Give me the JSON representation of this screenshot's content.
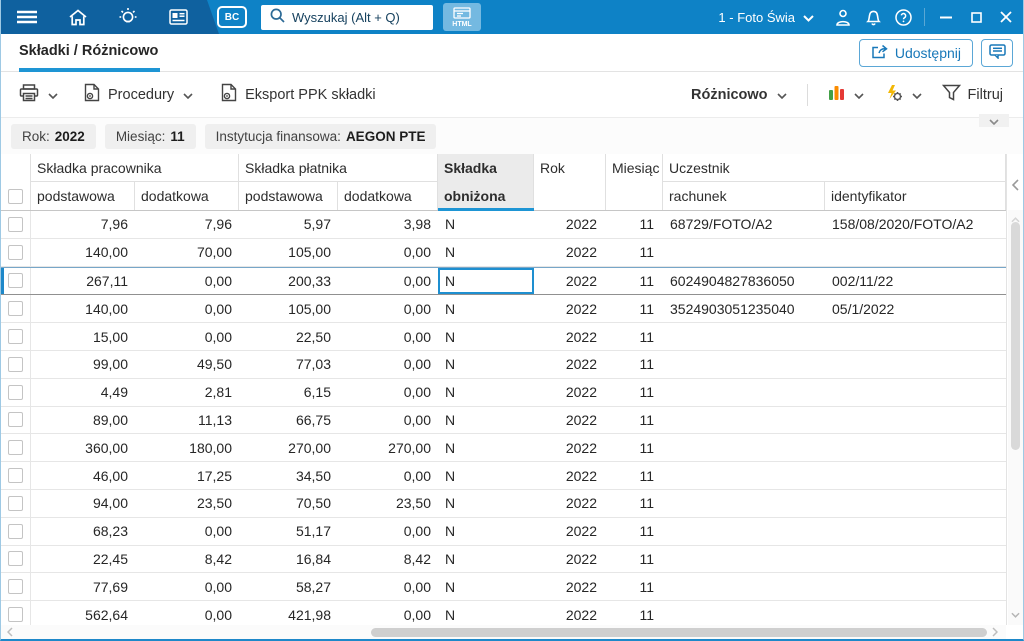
{
  "topbar": {
    "bc_badge": "BC",
    "search_placeholder": "Wyszukaj (Alt + Q)",
    "html_label": "HTML",
    "company": "1 - Foto Świa"
  },
  "tabbar": {
    "tab_label": "Składki / Różnicowo",
    "share_label": "Udostępnij"
  },
  "toolbar": {
    "procedures_label": "Procedury",
    "export_label": "Eksport PPK składki",
    "view_label": "Różnicowo",
    "filter_label": "Filtruj"
  },
  "filters": [
    {
      "label": "Rok:",
      "value": "2022"
    },
    {
      "label": "Miesiąc:",
      "value": "11"
    },
    {
      "label": "Instytucja finansowa:",
      "value": "AEGON PTE"
    }
  ],
  "table": {
    "headers": {
      "employee_group": "Składka pracownika",
      "payer_group": "Składka płatnika",
      "reduced_line1": "Składka",
      "reduced_line2": "obniżona",
      "year": "Rok",
      "month": "Miesiąc",
      "participant_group": "Uczestnik",
      "sub_basic": "podstawowa",
      "sub_additional": "dodatkowa",
      "account": "rachunek",
      "identifier": "identyfikator"
    },
    "rows": [
      {
        "emp_basic": "7,96",
        "emp_add": "7,96",
        "pay_basic": "5,97",
        "pay_add": "3,98",
        "reduced": "N",
        "year": "2022",
        "month": "11",
        "account": "68729/FOTO/A2",
        "identifier": "158/08/2020/FOTO/A2"
      },
      {
        "emp_basic": "140,00",
        "emp_add": "70,00",
        "pay_basic": "105,00",
        "pay_add": "0,00",
        "reduced": "N",
        "year": "2022",
        "month": "11",
        "account": "",
        "identifier": ""
      },
      {
        "emp_basic": "267,11",
        "emp_add": "0,00",
        "pay_basic": "200,33",
        "pay_add": "0,00",
        "reduced": "N",
        "year": "2022",
        "month": "11",
        "account": "6024904827836050",
        "identifier": "002/11/22",
        "selected": true
      },
      {
        "emp_basic": "140,00",
        "emp_add": "0,00",
        "pay_basic": "105,00",
        "pay_add": "0,00",
        "reduced": "N",
        "year": "2022",
        "month": "11",
        "account": "3524903051235040",
        "identifier": "05/1/2022"
      },
      {
        "emp_basic": "15,00",
        "emp_add": "0,00",
        "pay_basic": "22,50",
        "pay_add": "0,00",
        "reduced": "N",
        "year": "2022",
        "month": "11",
        "account": "",
        "identifier": ""
      },
      {
        "emp_basic": "99,00",
        "emp_add": "49,50",
        "pay_basic": "77,03",
        "pay_add": "0,00",
        "reduced": "N",
        "year": "2022",
        "month": "11",
        "account": "",
        "identifier": ""
      },
      {
        "emp_basic": "4,49",
        "emp_add": "2,81",
        "pay_basic": "6,15",
        "pay_add": "0,00",
        "reduced": "N",
        "year": "2022",
        "month": "11",
        "account": "",
        "identifier": ""
      },
      {
        "emp_basic": "89,00",
        "emp_add": "11,13",
        "pay_basic": "66,75",
        "pay_add": "0,00",
        "reduced": "N",
        "year": "2022",
        "month": "11",
        "account": "",
        "identifier": ""
      },
      {
        "emp_basic": "360,00",
        "emp_add": "180,00",
        "pay_basic": "270,00",
        "pay_add": "270,00",
        "reduced": "N",
        "year": "2022",
        "month": "11",
        "account": "",
        "identifier": ""
      },
      {
        "emp_basic": "46,00",
        "emp_add": "17,25",
        "pay_basic": "34,50",
        "pay_add": "0,00",
        "reduced": "N",
        "year": "2022",
        "month": "11",
        "account": "",
        "identifier": ""
      },
      {
        "emp_basic": "94,00",
        "emp_add": "23,50",
        "pay_basic": "70,50",
        "pay_add": "23,50",
        "reduced": "N",
        "year": "2022",
        "month": "11",
        "account": "",
        "identifier": ""
      },
      {
        "emp_basic": "68,23",
        "emp_add": "0,00",
        "pay_basic": "51,17",
        "pay_add": "0,00",
        "reduced": "N",
        "year": "2022",
        "month": "11",
        "account": "",
        "identifier": ""
      },
      {
        "emp_basic": "22,45",
        "emp_add": "8,42",
        "pay_basic": "16,84",
        "pay_add": "8,42",
        "reduced": "N",
        "year": "2022",
        "month": "11",
        "account": "",
        "identifier": ""
      },
      {
        "emp_basic": "77,69",
        "emp_add": "0,00",
        "pay_basic": "58,27",
        "pay_add": "0,00",
        "reduced": "N",
        "year": "2022",
        "month": "11",
        "account": "",
        "identifier": ""
      },
      {
        "emp_basic": "562,64",
        "emp_add": "0,00",
        "pay_basic": "421,98",
        "pay_add": "0,00",
        "reduced": "N",
        "year": "2022",
        "month": "11",
        "account": "",
        "identifier": ""
      }
    ]
  },
  "colors": {
    "topbar": "#0e82c6",
    "topbar_dark": "#0f619f",
    "accent": "#1e95d4",
    "chart_icon_bars": [
      "#43a047",
      "#fb8c00",
      "#e53935"
    ],
    "bolt_icon": "#f2b705"
  },
  "icons": {
    "topbar": [
      "menu-icon",
      "home-icon",
      "idea-icon",
      "news-icon",
      "search-icon",
      "html-icon",
      "user-icon",
      "bell-icon",
      "help-icon",
      "minimize-icon",
      "maximize-icon",
      "close-icon"
    ],
    "toolbar": [
      "printer-icon",
      "procedure-doc-icon",
      "export-doc-icon",
      "chart-icon",
      "automation-gear-icon",
      "funnel-icon"
    ],
    "other": [
      "share-icon",
      "comment-icon",
      "chevron-down-icon",
      "chevron-left-icon",
      "chevron-right-icon"
    ]
  }
}
